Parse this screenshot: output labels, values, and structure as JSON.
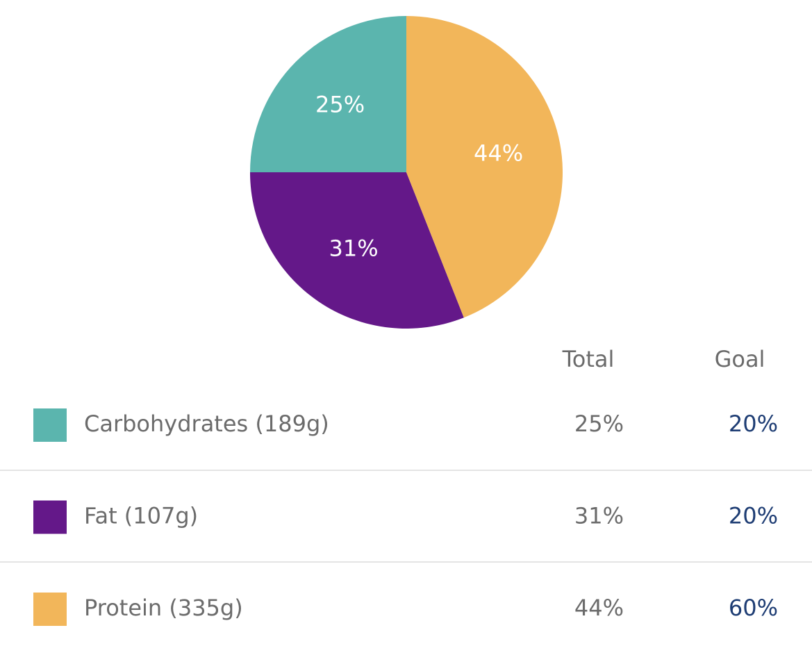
{
  "chart_data": {
    "type": "pie",
    "categories": [
      "Carbohydrates (189g)",
      "Fat (107g)",
      "Protein (335g)"
    ],
    "values": [
      25,
      31,
      44
    ],
    "value_labels": [
      "25%",
      "31%",
      "44%"
    ],
    "colors": [
      "#5bb5ae",
      "#641889",
      "#f2b65a"
    ]
  },
  "table": {
    "headers": [
      "Total",
      "Goal"
    ],
    "goals": [
      "20%",
      "20%",
      "60%"
    ]
  }
}
